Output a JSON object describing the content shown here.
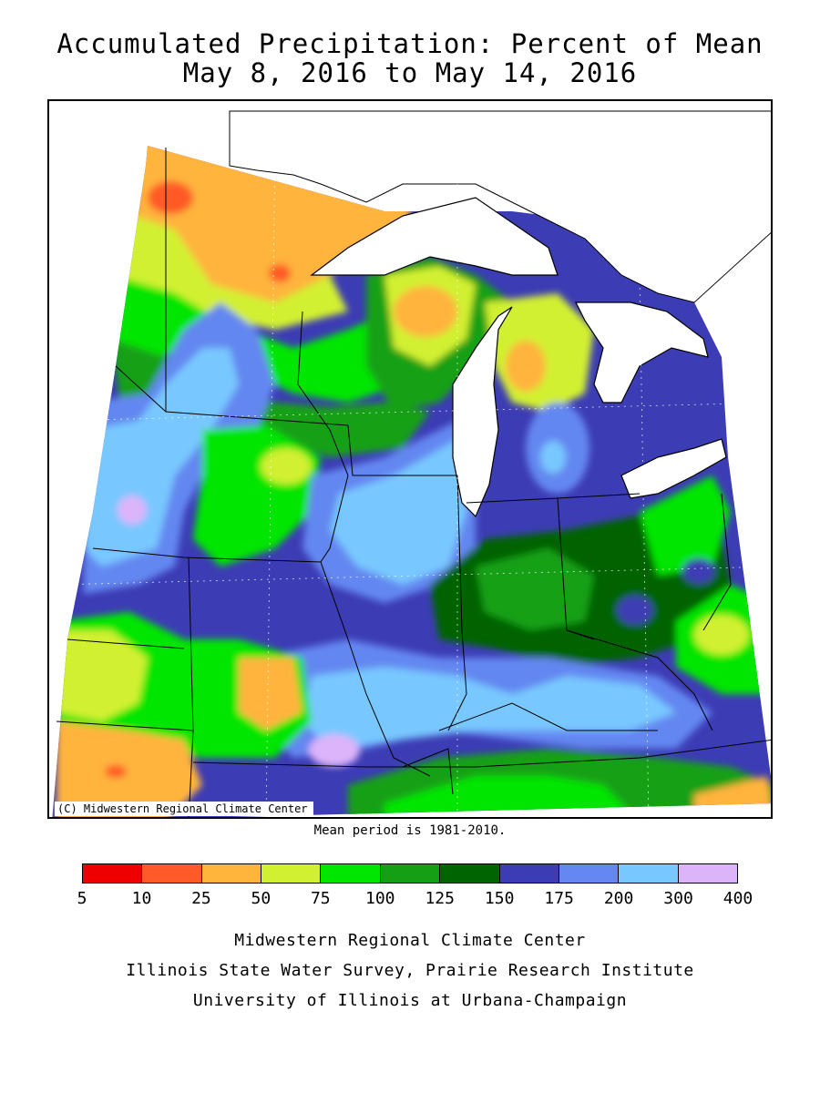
{
  "title": {
    "line1": "Accumulated Precipitation: Percent of Mean",
    "line2": "May 8, 2016 to May 14, 2016"
  },
  "map": {
    "copyright": "(C) Midwestern Regional Climate Center",
    "mean_period": "Mean period is 1981-2010."
  },
  "legend": {
    "bins": [
      {
        "from": 5,
        "to": 10,
        "color": "#ee0000"
      },
      {
        "from": 10,
        "to": 25,
        "color": "#ff5a28"
      },
      {
        "from": 25,
        "to": 50,
        "color": "#ffb43c"
      },
      {
        "from": 50,
        "to": 75,
        "color": "#d2f032"
      },
      {
        "from": 75,
        "to": 100,
        "color": "#00e600"
      },
      {
        "from": 100,
        "to": 125,
        "color": "#14a014"
      },
      {
        "from": 125,
        "to": 150,
        "color": "#006400"
      },
      {
        "from": 150,
        "to": 175,
        "color": "#3c3cb4"
      },
      {
        "from": 175,
        "to": 200,
        "color": "#6487f0"
      },
      {
        "from": 200,
        "to": 300,
        "color": "#78c8ff"
      },
      {
        "from": 300,
        "to": 400,
        "color": "#dcb4fa"
      }
    ],
    "tick_labels": [
      "5",
      "10",
      "25",
      "50",
      "75",
      "100",
      "125",
      "150",
      "175",
      "200",
      "300",
      "400"
    ]
  },
  "credits": {
    "line1": "Midwestern Regional Climate Center",
    "line2": "Illinois State Water Survey, Prairie Research Institute",
    "line3": "University of Illinois at Urbana-Champaign"
  }
}
